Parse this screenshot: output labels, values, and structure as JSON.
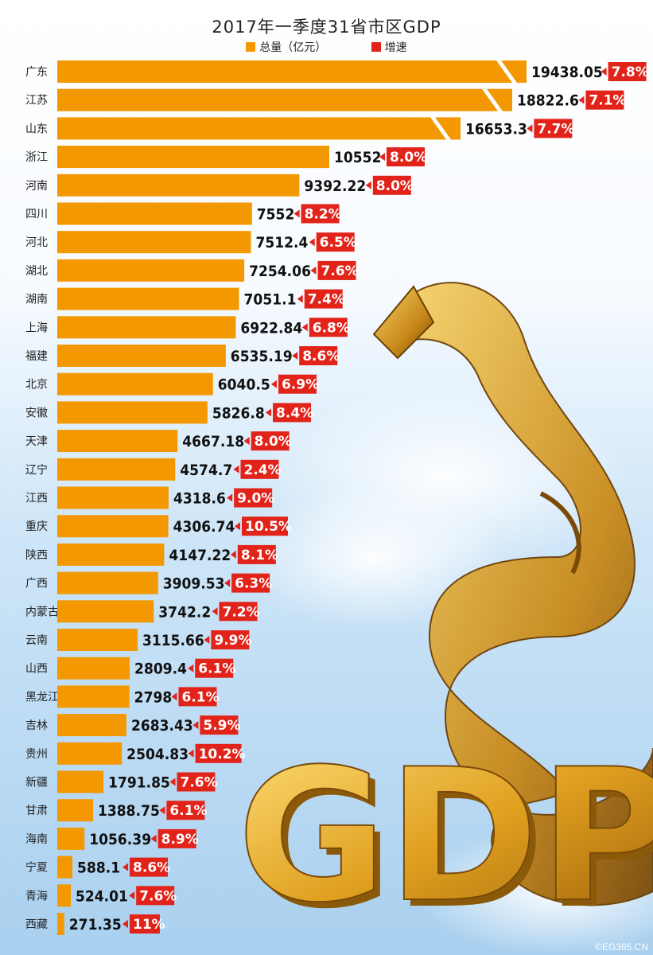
{
  "chart_data": {
    "type": "bar",
    "title": "2017年一季度31省市区GDP",
    "legend": [
      {
        "label": "总量（亿元）",
        "color": "#f39800"
      },
      {
        "label": "增速",
        "color": "#e2231a"
      }
    ],
    "categories": [
      "广东",
      "江苏",
      "山东",
      "浙江",
      "河南",
      "四川",
      "河北",
      "湖北",
      "湖南",
      "上海",
      "福建",
      "北京",
      "安徽",
      "天津",
      "辽宁",
      "江西",
      "重庆",
      "陕西",
      "广西",
      "内蒙古",
      "云南",
      "山西",
      "黑龙江",
      "吉林",
      "贵州",
      "新疆",
      "甘肃",
      "海南",
      "宁夏",
      "青海",
      "西藏"
    ],
    "series": [
      {
        "name": "总量（亿元）",
        "values": [
          19438.05,
          18822.6,
          16653.3,
          10552,
          9392.22,
          7552,
          7512.4,
          7254.06,
          7051.1,
          6922.84,
          6535.19,
          6040.5,
          5826.8,
          4667.18,
          4574.7,
          4318.6,
          4306.74,
          4147.22,
          3909.53,
          3742.2,
          3115.66,
          2809.4,
          2798,
          2683.43,
          2504.83,
          1791.85,
          1388.75,
          1056.39,
          588.1,
          524.01,
          271.35
        ]
      },
      {
        "name": "增速",
        "values": [
          "7.8%",
          "7.1%",
          "7.7%",
          "8.0%",
          "8.0%",
          "8.2%",
          "6.5%",
          "7.6%",
          "7.4%",
          "6.8%",
          "8.6%",
          "6.9%",
          "8.4%",
          "8.0%",
          "2.4%",
          "9.0%",
          "10.5%",
          "8.1%",
          "6.3%",
          "7.2%",
          "9.9%",
          "6.1%",
          "6.1%",
          "5.9%",
          "10.2%",
          "7.6%",
          "6.1%",
          "8.9%",
          "8.6%",
          "7.6%",
          "11%"
        ]
      }
    ],
    "value_labels": [
      "19438.05",
      "18822.6",
      "16653.3",
      "10552",
      "9392.22",
      "7552",
      "7512.4",
      "7254.06",
      "7051.1",
      "6922.84",
      "6535.19",
      "6040.5",
      "5826.8",
      "4667.18",
      "4574.7",
      "4318.6",
      "4306.74",
      "4147.22",
      "3909.53",
      "3742.2",
      "3115.66",
      "2809.4",
      "2798",
      "2683.43",
      "2504.83",
      "1791.85",
      "1388.75",
      "1056.39",
      "588.1",
      "524.01",
      "271.35"
    ],
    "broken_axis_categories": [
      "广东",
      "江苏",
      "山东"
    ],
    "bar_color": "#f39800",
    "growth_color": "#e2231a"
  },
  "decoration": {
    "big_text": "GDP",
    "watermark": "©EG365.CN"
  }
}
